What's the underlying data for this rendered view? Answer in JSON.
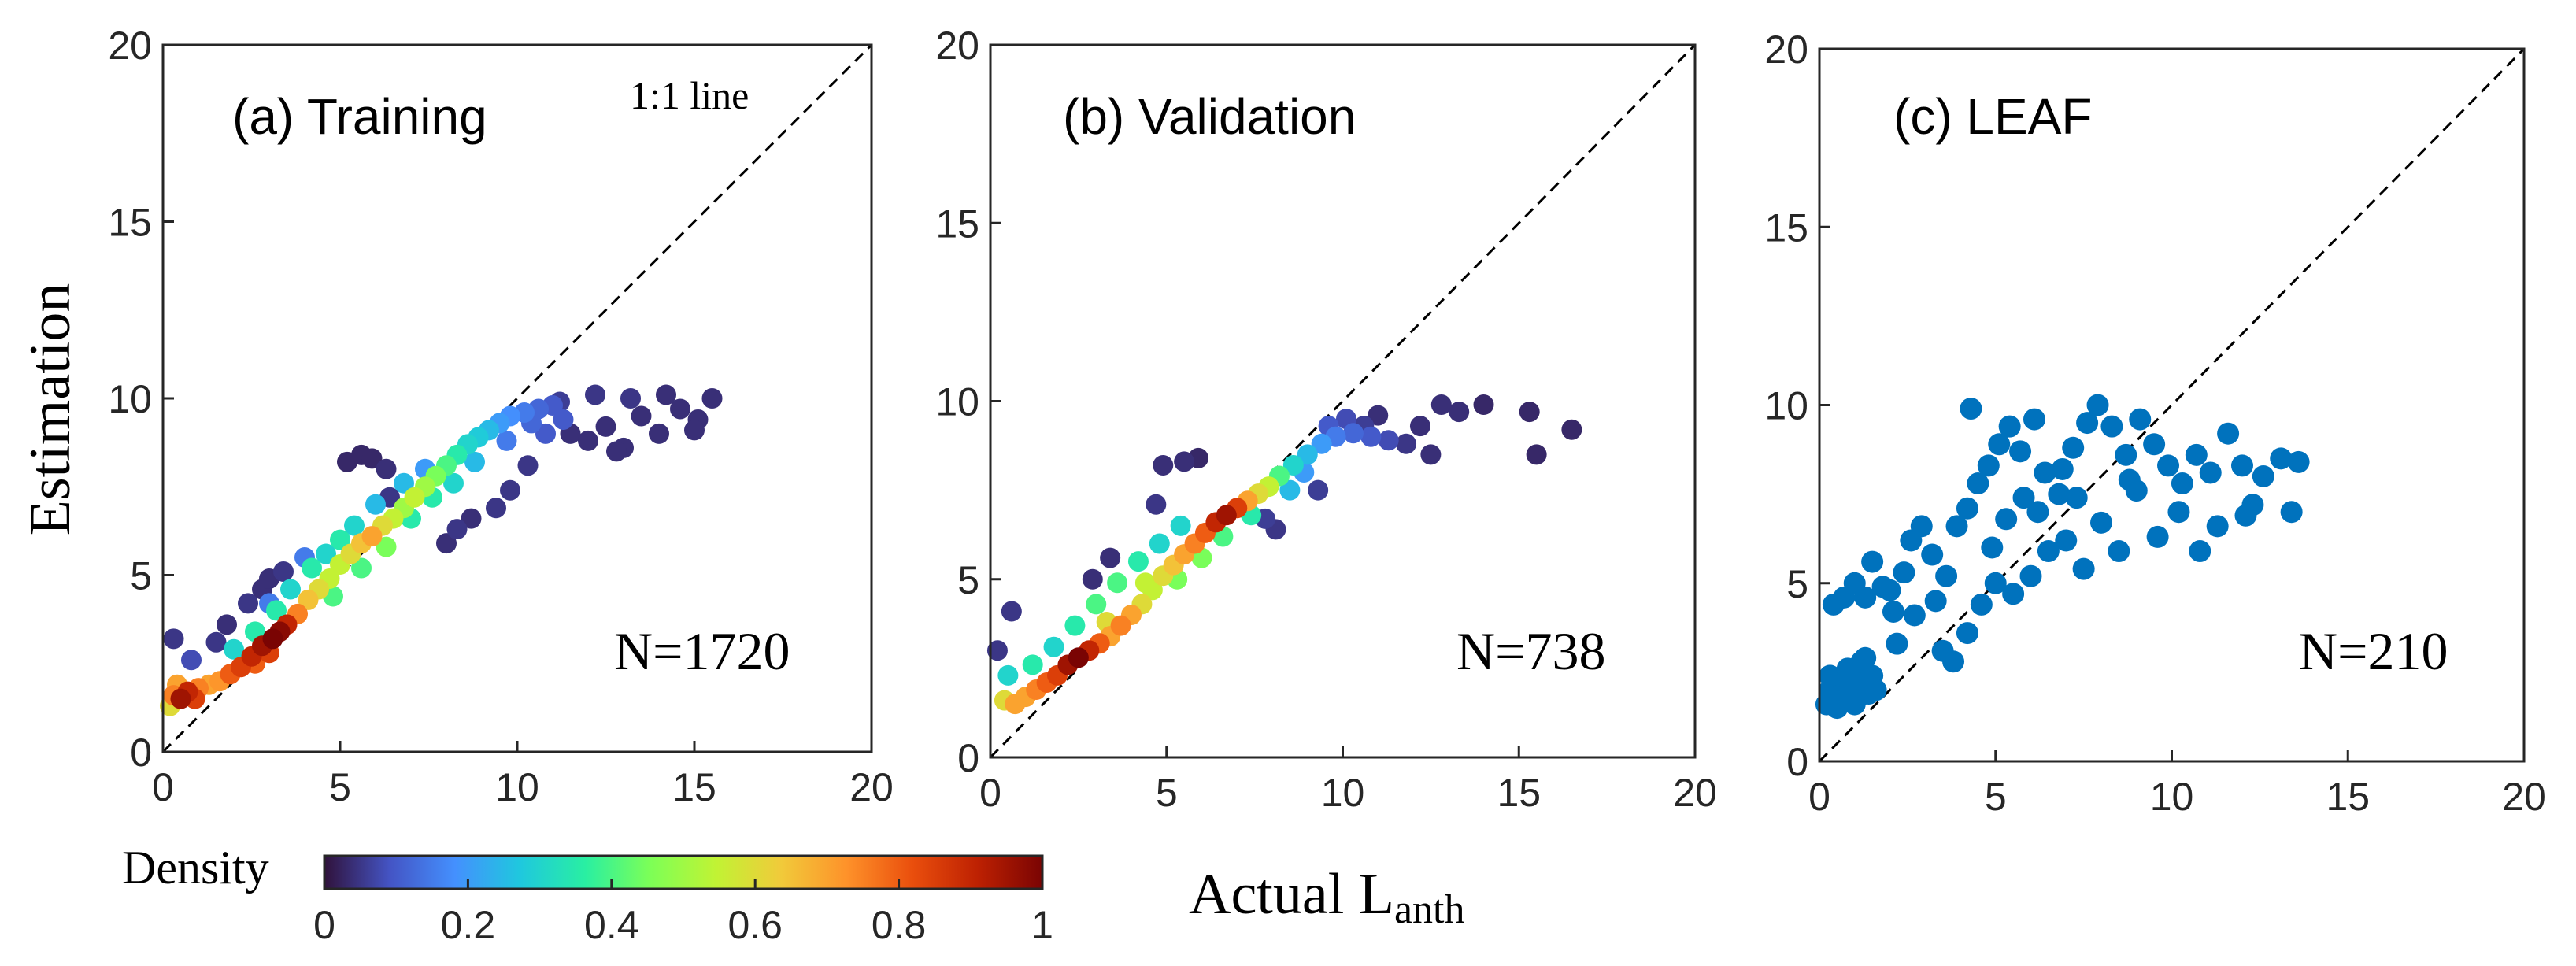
{
  "colors": {
    "single": "#0072bd",
    "colormap": [
      "#30123b",
      "#4454c4",
      "#4490fe",
      "#1fc8de",
      "#29efa2",
      "#7dff56",
      "#c1f334",
      "#f1ca3a",
      "#fe922a",
      "#ea4f0d",
      "#be2102",
      "#7a0403"
    ]
  },
  "labels": {
    "ylabel": "Estimation",
    "xlabel_main": "Actual L",
    "xlabel_sub": "anth",
    "one_to_one": "1:1 line",
    "density": "Density"
  },
  "colorbar": {
    "ticks": [
      "0",
      "0.2",
      "0.4",
      "0.6",
      "0.8",
      "1"
    ]
  },
  "chart_data": [
    {
      "type": "scatter",
      "title": "(a) Training",
      "n_label": "N=1720",
      "density_colored": true,
      "xlim": [
        0,
        20
      ],
      "ylim": [
        0,
        20
      ],
      "xticks": [
        "0",
        "5",
        "10",
        "15",
        "20"
      ],
      "yticks": [
        "0",
        "5",
        "10",
        "15",
        "20"
      ],
      "points": [
        [
          0.3,
          1.6,
          0.75
        ],
        [
          0.5,
          1.5,
          0.95
        ],
        [
          0.7,
          1.7,
          0.9
        ],
        [
          0.9,
          1.5,
          0.85
        ],
        [
          0.4,
          1.9,
          0.7
        ],
        [
          0.2,
          1.3,
          0.6
        ],
        [
          1.0,
          1.8,
          0.75
        ],
        [
          1.3,
          1.9,
          0.7
        ],
        [
          1.6,
          2.0,
          0.72
        ],
        [
          1.9,
          2.2,
          0.8
        ],
        [
          2.2,
          2.4,
          0.85
        ],
        [
          2.5,
          2.7,
          0.9
        ],
        [
          2.8,
          3.0,
          0.95
        ],
        [
          3.1,
          3.2,
          1.0
        ],
        [
          3.3,
          3.4,
          0.98
        ],
        [
          3.5,
          3.6,
          0.9
        ],
        [
          3.0,
          2.8,
          0.85
        ],
        [
          2.6,
          2.5,
          0.8
        ],
        [
          3.8,
          3.9,
          0.75
        ],
        [
          4.1,
          4.3,
          0.65
        ],
        [
          4.4,
          4.6,
          0.6
        ],
        [
          4.7,
          4.9,
          0.55
        ],
        [
          5.0,
          5.3,
          0.55
        ],
        [
          5.3,
          5.6,
          0.6
        ],
        [
          5.6,
          5.9,
          0.65
        ],
        [
          5.9,
          6.1,
          0.7
        ],
        [
          6.2,
          6.4,
          0.6
        ],
        [
          6.5,
          6.6,
          0.55
        ],
        [
          6.8,
          6.9,
          0.5
        ],
        [
          7.1,
          7.2,
          0.55
        ],
        [
          7.4,
          7.5,
          0.5
        ],
        [
          7.7,
          7.8,
          0.45
        ],
        [
          8.0,
          8.1,
          0.4
        ],
        [
          8.3,
          8.4,
          0.35
        ],
        [
          8.6,
          8.7,
          0.3
        ],
        [
          8.9,
          8.9,
          0.28
        ],
        [
          9.2,
          9.1,
          0.25
        ],
        [
          9.5,
          9.3,
          0.2
        ],
        [
          9.8,
          9.5,
          0.18
        ],
        [
          10.2,
          9.6,
          0.15
        ],
        [
          10.6,
          9.7,
          0.12
        ],
        [
          11.0,
          9.8,
          0.1
        ],
        [
          2.0,
          2.9,
          0.3
        ],
        [
          2.6,
          3.4,
          0.35
        ],
        [
          3.2,
          4.0,
          0.35
        ],
        [
          3.6,
          4.6,
          0.3
        ],
        [
          4.2,
          5.2,
          0.35
        ],
        [
          4.6,
          5.6,
          0.3
        ],
        [
          5.0,
          6.0,
          0.35
        ],
        [
          5.4,
          6.4,
          0.3
        ],
        [
          4.8,
          4.4,
          0.4
        ],
        [
          5.6,
          5.2,
          0.4
        ],
        [
          6.3,
          5.8,
          0.45
        ],
        [
          7.0,
          6.6,
          0.35
        ],
        [
          7.6,
          7.2,
          0.35
        ],
        [
          8.2,
          7.6,
          0.3
        ],
        [
          8.8,
          8.2,
          0.25
        ],
        [
          6.0,
          7.0,
          0.25
        ],
        [
          6.8,
          7.6,
          0.25
        ],
        [
          7.4,
          8.0,
          0.2
        ],
        [
          1.5,
          3.1,
          0.05
        ],
        [
          1.8,
          3.6,
          0.04
        ],
        [
          2.4,
          4.2,
          0.05
        ],
        [
          2.8,
          4.6,
          0.04
        ],
        [
          3.4,
          5.1,
          0.05
        ],
        [
          3.0,
          4.9,
          0.04
        ],
        [
          5.2,
          8.2,
          0.03
        ],
        [
          5.6,
          8.4,
          0.03
        ],
        [
          5.9,
          8.3,
          0.03
        ],
        [
          6.3,
          8.0,
          0.04
        ],
        [
          6.4,
          7.2,
          0.05
        ],
        [
          8.3,
          6.3,
          0.05
        ],
        [
          8.7,
          6.6,
          0.04
        ],
        [
          9.4,
          6.9,
          0.05
        ],
        [
          9.8,
          7.4,
          0.05
        ],
        [
          10.3,
          8.1,
          0.05
        ],
        [
          8.0,
          5.9,
          0.04
        ],
        [
          11.5,
          9.0,
          0.04
        ],
        [
          12.0,
          8.8,
          0.04
        ],
        [
          12.5,
          9.2,
          0.04
        ],
        [
          13.0,
          8.6,
          0.04
        ],
        [
          13.5,
          9.5,
          0.04
        ],
        [
          14.0,
          9.0,
          0.04
        ],
        [
          14.6,
          9.7,
          0.04
        ],
        [
          15.1,
          9.4,
          0.04
        ],
        [
          15.5,
          10.0,
          0.04
        ],
        [
          11.2,
          9.9,
          0.06
        ],
        [
          12.2,
          10.1,
          0.05
        ],
        [
          13.2,
          10.0,
          0.05
        ],
        [
          14.2,
          10.1,
          0.04
        ],
        [
          15.0,
          9.1,
          0.04
        ],
        [
          12.8,
          8.5,
          0.04
        ],
        [
          0.3,
          3.2,
          0.05
        ],
        [
          0.8,
          2.6,
          0.08
        ],
        [
          4.0,
          5.5,
          0.15
        ],
        [
          3.0,
          4.2,
          0.15
        ],
        [
          10.8,
          9.0,
          0.1
        ],
        [
          9.7,
          8.8,
          0.15
        ],
        [
          10.4,
          9.3,
          0.12
        ],
        [
          11.3,
          9.4,
          0.1
        ]
      ]
    },
    {
      "type": "scatter",
      "title": "(b) Validation",
      "n_label": "N=738",
      "density_colored": true,
      "xlim": [
        0,
        20
      ],
      "ylim": [
        0,
        20
      ],
      "xticks": [
        "0",
        "5",
        "10",
        "15",
        "20"
      ],
      "yticks": [
        "0",
        "5",
        "10",
        "15",
        "20"
      ],
      "points": [
        [
          0.4,
          1.6,
          0.6
        ],
        [
          0.7,
          1.5,
          0.7
        ],
        [
          1.0,
          1.7,
          0.7
        ],
        [
          1.3,
          1.9,
          0.75
        ],
        [
          1.6,
          2.1,
          0.8
        ],
        [
          1.9,
          2.3,
          0.85
        ],
        [
          2.2,
          2.6,
          0.95
        ],
        [
          2.5,
          2.8,
          1.0
        ],
        [
          2.8,
          3.0,
          0.9
        ],
        [
          3.1,
          3.2,
          0.8
        ],
        [
          3.4,
          3.4,
          0.7
        ],
        [
          3.7,
          3.7,
          0.75
        ],
        [
          4.0,
          4.0,
          0.7
        ],
        [
          4.3,
          4.3,
          0.6
        ],
        [
          4.6,
          4.7,
          0.55
        ],
        [
          4.9,
          5.1,
          0.6
        ],
        [
          5.2,
          5.4,
          0.65
        ],
        [
          5.5,
          5.7,
          0.7
        ],
        [
          5.8,
          6.0,
          0.75
        ],
        [
          6.1,
          6.3,
          0.8
        ],
        [
          6.4,
          6.6,
          0.9
        ],
        [
          6.7,
          6.8,
          0.95
        ],
        [
          7.0,
          7.0,
          0.85
        ],
        [
          7.3,
          7.2,
          0.7
        ],
        [
          7.6,
          7.4,
          0.6
        ],
        [
          7.9,
          7.6,
          0.55
        ],
        [
          8.2,
          7.9,
          0.4
        ],
        [
          8.6,
          8.2,
          0.3
        ],
        [
          9.0,
          8.5,
          0.25
        ],
        [
          9.4,
          8.8,
          0.2
        ],
        [
          9.8,
          9.0,
          0.15
        ],
        [
          10.3,
          9.1,
          0.12
        ],
        [
          10.8,
          9.0,
          0.1
        ],
        [
          11.3,
          8.9,
          0.08
        ],
        [
          3.0,
          4.3,
          0.4
        ],
        [
          3.6,
          4.9,
          0.4
        ],
        [
          4.2,
          5.5,
          0.35
        ],
        [
          4.8,
          6.0,
          0.3
        ],
        [
          5.4,
          6.5,
          0.3
        ],
        [
          2.4,
          3.7,
          0.35
        ],
        [
          1.8,
          3.1,
          0.3
        ],
        [
          0.5,
          2.3,
          0.3
        ],
        [
          1.2,
          2.6,
          0.35
        ],
        [
          5.3,
          5.0,
          0.45
        ],
        [
          6.0,
          5.6,
          0.45
        ],
        [
          6.6,
          6.2,
          0.4
        ],
        [
          7.4,
          6.8,
          0.35
        ],
        [
          0.2,
          3.0,
          0.05
        ],
        [
          0.6,
          4.1,
          0.05
        ],
        [
          2.9,
          5.0,
          0.04
        ],
        [
          3.4,
          5.6,
          0.04
        ],
        [
          4.9,
          8.2,
          0.04
        ],
        [
          5.5,
          8.3,
          0.04
        ],
        [
          4.7,
          7.1,
          0.05
        ],
        [
          5.9,
          8.4,
          0.03
        ],
        [
          7.8,
          6.7,
          0.06
        ],
        [
          8.1,
          6.4,
          0.05
        ],
        [
          9.3,
          7.5,
          0.06
        ],
        [
          9.6,
          9.3,
          0.1
        ],
        [
          10.1,
          9.5,
          0.08
        ],
        [
          10.6,
          9.3,
          0.06
        ],
        [
          11.0,
          9.6,
          0.04
        ],
        [
          12.2,
          9.3,
          0.04
        ],
        [
          12.8,
          9.9,
          0.04
        ],
        [
          13.3,
          9.7,
          0.04
        ],
        [
          12.5,
          8.5,
          0.04
        ],
        [
          14.0,
          9.9,
          0.03
        ],
        [
          15.3,
          9.7,
          0.03
        ],
        [
          15.5,
          8.5,
          0.03
        ],
        [
          16.5,
          9.2,
          0.03
        ],
        [
          11.8,
          8.8,
          0.05
        ],
        [
          8.5,
          7.5,
          0.25
        ],
        [
          8.9,
          8.0,
          0.2
        ],
        [
          4.4,
          4.9,
          0.55
        ],
        [
          3.3,
          3.8,
          0.6
        ]
      ]
    },
    {
      "type": "scatter",
      "title": "(c) LEAF",
      "n_label": "N=210",
      "density_colored": false,
      "xlim": [
        0,
        20
      ],
      "ylim": [
        0,
        20
      ],
      "xticks": [
        "0",
        "5",
        "10",
        "15",
        "20"
      ],
      "yticks": [
        "0",
        "5",
        "10",
        "15",
        "20"
      ],
      "points": [
        [
          0.2,
          1.6
        ],
        [
          0.3,
          2.0
        ],
        [
          0.4,
          1.7
        ],
        [
          0.5,
          2.2
        ],
        [
          0.6,
          1.8
        ],
        [
          0.7,
          2.4
        ],
        [
          0.8,
          1.9
        ],
        [
          0.9,
          2.1
        ],
        [
          1.0,
          2.6
        ],
        [
          1.1,
          1.8
        ],
        [
          1.2,
          2.3
        ],
        [
          1.3,
          2.9
        ],
        [
          1.4,
          1.9
        ],
        [
          1.5,
          2.4
        ],
        [
          1.6,
          2.0
        ],
        [
          0.3,
          2.4
        ],
        [
          0.5,
          1.5
        ],
        [
          0.8,
          2.6
        ],
        [
          1.0,
          1.6
        ],
        [
          1.2,
          2.8
        ],
        [
          0.4,
          4.4
        ],
        [
          0.7,
          4.6
        ],
        [
          1.0,
          5.0
        ],
        [
          1.3,
          4.6
        ],
        [
          1.5,
          5.6
        ],
        [
          1.8,
          4.9
        ],
        [
          2.1,
          4.2
        ],
        [
          2.4,
          5.3
        ],
        [
          2.6,
          6.2
        ],
        [
          2.9,
          6.6
        ],
        [
          3.2,
          5.8
        ],
        [
          3.6,
          5.2
        ],
        [
          3.9,
          6.6
        ],
        [
          4.2,
          7.1
        ],
        [
          4.5,
          7.8
        ],
        [
          4.8,
          8.3
        ],
        [
          5.1,
          8.9
        ],
        [
          5.4,
          9.4
        ],
        [
          5.7,
          8.7
        ],
        [
          4.3,
          9.9
        ],
        [
          6.1,
          9.6
        ],
        [
          6.4,
          8.1
        ],
        [
          6.8,
          7.5
        ],
        [
          7.2,
          8.8
        ],
        [
          7.6,
          9.5
        ],
        [
          7.9,
          10.0
        ],
        [
          8.3,
          9.4
        ],
        [
          8.7,
          8.6
        ],
        [
          9.1,
          9.6
        ],
        [
          9.5,
          8.9
        ],
        [
          9.9,
          8.3
        ],
        [
          10.3,
          7.8
        ],
        [
          10.7,
          8.6
        ],
        [
          11.1,
          8.1
        ],
        [
          11.6,
          9.2
        ],
        [
          12.0,
          8.3
        ],
        [
          12.3,
          7.2
        ],
        [
          12.6,
          8.0
        ],
        [
          13.1,
          8.5
        ],
        [
          13.4,
          7.0
        ],
        [
          13.6,
          8.4
        ],
        [
          3.5,
          3.1
        ],
        [
          3.8,
          2.8
        ],
        [
          4.2,
          3.6
        ],
        [
          4.6,
          4.4
        ],
        [
          5.0,
          5.0
        ],
        [
          5.5,
          4.7
        ],
        [
          6.0,
          5.2
        ],
        [
          6.5,
          5.9
        ],
        [
          7.0,
          6.2
        ],
        [
          7.5,
          5.4
        ],
        [
          8.0,
          6.7
        ],
        [
          8.5,
          5.9
        ],
        [
          9.0,
          7.6
        ],
        [
          9.6,
          6.3
        ],
        [
          10.2,
          7.0
        ],
        [
          10.8,
          5.9
        ],
        [
          11.3,
          6.6
        ],
        [
          12.1,
          6.9
        ],
        [
          4.9,
          6.0
        ],
        [
          5.3,
          6.8
        ],
        [
          5.8,
          7.4
        ],
        [
          6.2,
          7.0
        ],
        [
          6.9,
          8.2
        ],
        [
          7.3,
          7.4
        ],
        [
          8.8,
          7.9
        ],
        [
          2.2,
          3.3
        ],
        [
          2.0,
          4.8
        ],
        [
          2.7,
          4.1
        ],
        [
          3.3,
          4.5
        ]
      ]
    }
  ]
}
